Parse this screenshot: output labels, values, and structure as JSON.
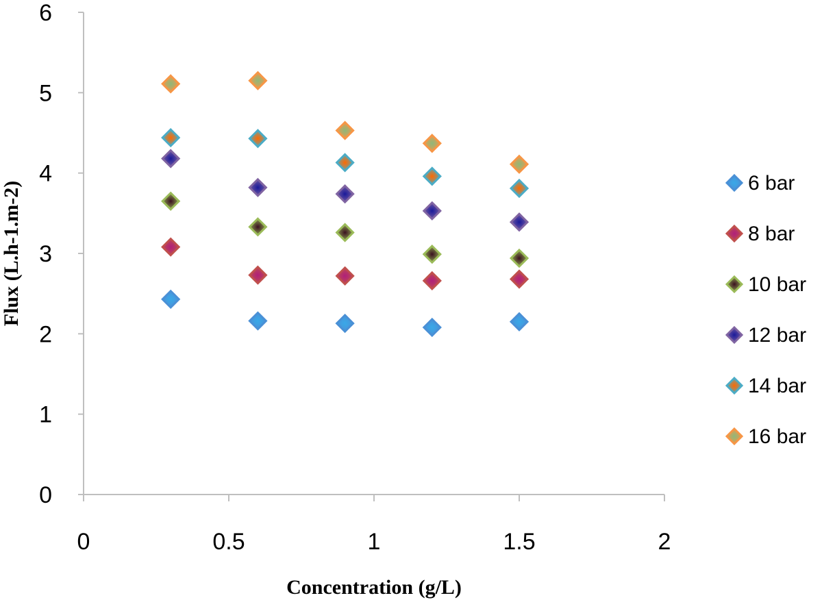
{
  "chart_data": {
    "type": "scatter",
    "xlabel": "Concentration (g/L)",
    "ylabel": "Flux (L.h-1.m-2)",
    "xlim": [
      0,
      2
    ],
    "ylim": [
      0,
      6
    ],
    "xticks": [
      "0",
      "0.5",
      "1",
      "1.5",
      "2"
    ],
    "yticks": [
      "0",
      "1",
      "2",
      "3",
      "4",
      "5",
      "6"
    ],
    "grid": false,
    "legend_position": "right",
    "x": [
      0.3,
      0.6,
      0.9,
      1.2,
      1.5
    ],
    "series": [
      {
        "name": "6 bar",
        "values": [
          2.43,
          2.16,
          2.13,
          2.08,
          2.15
        ],
        "colors": {
          "outer": "#4a90d6",
          "inner": "#3aa8e8"
        }
      },
      {
        "name": "8 bar",
        "values": [
          3.08,
          2.73,
          2.72,
          2.66,
          2.68
        ],
        "colors": {
          "outer": "#c0504d",
          "inner": "#b0207a"
        }
      },
      {
        "name": "10 bar",
        "values": [
          3.65,
          3.33,
          3.26,
          2.99,
          2.94
        ],
        "colors": {
          "outer": "#9bbb59",
          "inner": "#3a1020"
        }
      },
      {
        "name": "12 bar",
        "values": [
          4.18,
          3.82,
          3.74,
          3.53,
          3.39
        ],
        "colors": {
          "outer": "#8064a2",
          "inner": "#1a1a9a"
        }
      },
      {
        "name": "14 bar",
        "values": [
          4.44,
          4.43,
          4.13,
          3.96,
          3.81
        ],
        "colors": {
          "outer": "#4bacc6",
          "inner": "#ff6a00"
        }
      },
      {
        "name": "16 bar",
        "values": [
          5.11,
          5.15,
          4.53,
          4.37,
          4.11
        ],
        "colors": {
          "outer": "#f79646",
          "inner": "#8fb87a"
        }
      }
    ]
  }
}
